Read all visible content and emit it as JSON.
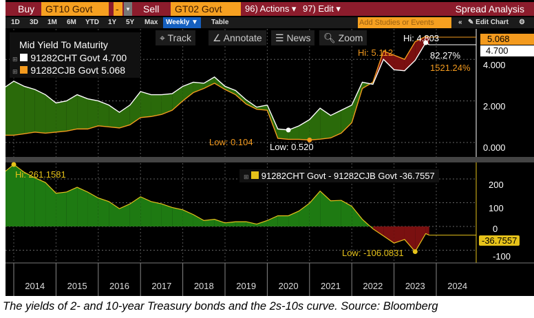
{
  "toolbar": {
    "buy_label": "Buy",
    "buy_ticker": "GT10 Govt",
    "minus": "-",
    "sell_label": "Sell",
    "sell_ticker": "GT02 Govt",
    "actions": "96) Actions ▾",
    "edit": "97) Edit ▾",
    "title": "Spread Analysis"
  },
  "subbar": {
    "periods": [
      "1D",
      "3D",
      "1M",
      "6M",
      "YTD",
      "1Y",
      "5Y",
      "Max"
    ],
    "frequency": "Weekly ▼",
    "table": "Table",
    "studies_placeholder": "Add Studies or Events",
    "collapse": "«",
    "edit_chart": "✎ Edit Chart",
    "settings_icon": "⚙"
  },
  "chart_tools": {
    "track": "⌖ Track",
    "annotate": "∠ Annotate",
    "news": "☰ News",
    "zoom": "🔍︎ Zoom"
  },
  "colors": {
    "ten_year": "#ffffff",
    "two_year": "#f39a1e",
    "spread": "#e6c21a",
    "positive_fill": "#2a6a0a",
    "negative_fill": "#7a1010",
    "toolbar": "#8c1c2c"
  },
  "chart_data": [
    {
      "type": "area",
      "title": "Mid Yield To Maturity",
      "ylim": [
        -0.3,
        5.3
      ],
      "yticks": [
        "0.000",
        "2.000",
        "4.000"
      ],
      "grid": true,
      "x": [
        "2013-10",
        "2014-01",
        "2014-04",
        "2014-07",
        "2014-10",
        "2015-01",
        "2015-04",
        "2015-07",
        "2015-10",
        "2016-01",
        "2016-04",
        "2016-07",
        "2016-10",
        "2017-01",
        "2017-04",
        "2017-07",
        "2017-10",
        "2018-01",
        "2018-04",
        "2018-07",
        "2018-10",
        "2019-01",
        "2019-04",
        "2019-07",
        "2019-10",
        "2020-01",
        "2020-04",
        "2020-07",
        "2020-10",
        "2021-01",
        "2021-04",
        "2021-07",
        "2021-10",
        "2022-01",
        "2022-04",
        "2022-07",
        "2022-10",
        "2023-01",
        "2023-04",
        "2023-07",
        "2023-10",
        "2023-11"
      ],
      "series": [
        {
          "name": "91282CHT Govt",
          "last": "4.700",
          "values": [
            2.6,
            2.95,
            2.7,
            2.55,
            2.3,
            1.9,
            2.0,
            2.3,
            2.1,
            2.0,
            1.8,
            1.45,
            1.8,
            2.45,
            2.3,
            2.3,
            2.35,
            2.7,
            2.9,
            2.85,
            3.15,
            2.7,
            2.5,
            2.05,
            1.7,
            1.8,
            0.65,
            0.6,
            0.8,
            1.1,
            1.65,
            1.3,
            1.55,
            1.8,
            2.9,
            2.8,
            4.0,
            3.5,
            3.45,
            3.95,
            4.8,
            4.7
          ],
          "hi": "Hi: 4.803",
          "low": "Low: 0.520",
          "change": "82.27%"
        },
        {
          "name": "91282CJB Govt",
          "last": "5.068",
          "values": [
            0.35,
            0.35,
            0.42,
            0.5,
            0.45,
            0.5,
            0.55,
            0.65,
            0.65,
            0.8,
            0.75,
            0.7,
            0.85,
            1.2,
            1.25,
            1.35,
            1.55,
            2.0,
            2.4,
            2.6,
            2.85,
            2.55,
            2.3,
            1.85,
            1.6,
            1.55,
            0.2,
            0.15,
            0.15,
            0.12,
            0.16,
            0.22,
            0.45,
            0.95,
            2.6,
            2.9,
            4.4,
            4.2,
            4.0,
            4.85,
            5.1,
            5.068
          ],
          "hi": "Hi: 5.112",
          "low": "Low: 0.104",
          "change": "1521.24%"
        }
      ]
    },
    {
      "type": "area",
      "ylim": [
        -135,
        280
      ],
      "yticks": [
        "200",
        "100",
        "0",
        "-100"
      ],
      "grid": true,
      "x_ticks": [
        "2014",
        "2015",
        "2016",
        "2017",
        "2018",
        "2019",
        "2020",
        "2021",
        "2022",
        "2023",
        "2024"
      ],
      "series": [
        {
          "name": "91282CHT Govt - 91282CJB Govt",
          "last": "-36.7557",
          "hi": "Hi: 261.1581",
          "low": "Low: -106.0831",
          "values": [
            225,
            261,
            228,
            205,
            185,
            140,
            145,
            165,
            145,
            120,
            105,
            75,
            95,
            125,
            105,
            95,
            80,
            70,
            50,
            25,
            30,
            15,
            20,
            20,
            10,
            25,
            45,
            45,
            65,
            98,
            149,
            108,
            110,
            85,
            30,
            -10,
            -40,
            -70,
            -55,
            -106,
            -30,
            -36.76
          ]
        }
      ]
    }
  ],
  "caption": "The yields of 2- and 10-year Treasury bonds and the 2s-10s curve. Source: Bloomberg"
}
